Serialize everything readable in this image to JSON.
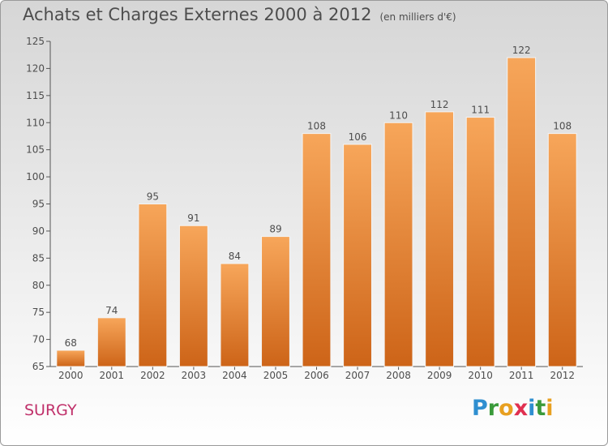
{
  "title": "Achats et Charges Externes 2000 à 2012",
  "subtitle": "(en milliers d'€)",
  "town": "SURGY",
  "logo": {
    "letters": [
      "P",
      "r",
      "o",
      "x",
      "i",
      "t",
      "i"
    ],
    "colors": [
      "#2f8fd0",
      "#3a9a3a",
      "#e8a020",
      "#e03050",
      "#2f8fd0",
      "#3a9a3a",
      "#e8a020"
    ]
  },
  "colors": {
    "bar_top": "#f7a65a",
    "bar_bottom": "#cd6418",
    "text": "#4d4d4d"
  },
  "chart_data": {
    "type": "bar",
    "categories": [
      "2000",
      "2001",
      "2002",
      "2003",
      "2004",
      "2005",
      "2006",
      "2007",
      "2008",
      "2009",
      "2010",
      "2011",
      "2012"
    ],
    "values": [
      68,
      74,
      95,
      91,
      84,
      89,
      108,
      106,
      110,
      112,
      111,
      122,
      108
    ],
    "ylim": [
      65,
      125
    ],
    "yticks": [
      65,
      70,
      75,
      80,
      85,
      90,
      95,
      100,
      105,
      110,
      115,
      120,
      125
    ],
    "grid": false,
    "data_labels": true
  }
}
